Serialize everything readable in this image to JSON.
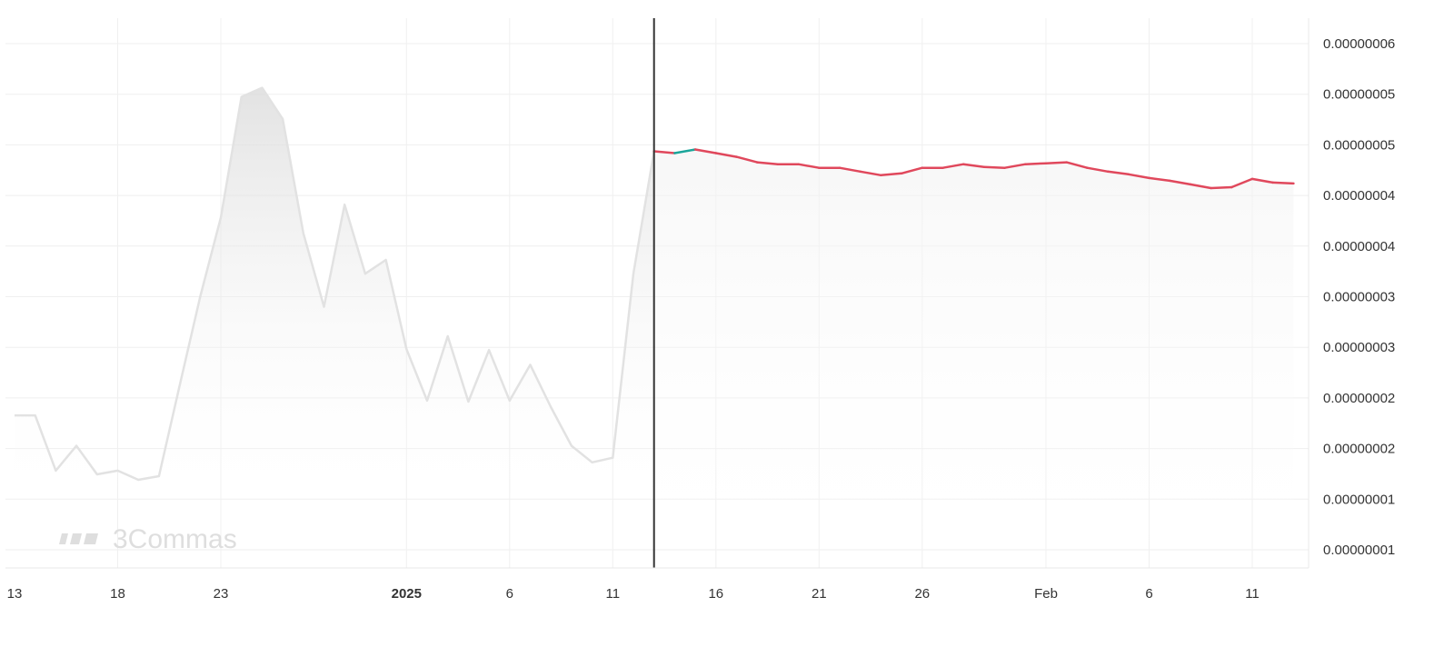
{
  "chart_data": {
    "type": "line",
    "y_tick_labels": [
      "0.00000006",
      "0.00000005",
      "0.00000005",
      "0.00000004",
      "0.00000004",
      "0.00000003",
      "0.00000003",
      "0.00000002",
      "0.00000002",
      "0.00000001",
      "0.00000001"
    ],
    "x_tick_labels": [
      {
        "label": "13",
        "day": 0,
        "bold": false
      },
      {
        "label": "18",
        "day": 5,
        "bold": false
      },
      {
        "label": "23",
        "day": 10,
        "bold": false
      },
      {
        "label": "2025",
        "day": 19,
        "bold": true
      },
      {
        "label": "6",
        "day": 24,
        "bold": false
      },
      {
        "label": "11",
        "day": 29,
        "bold": false
      },
      {
        "label": "16",
        "day": 34,
        "bold": false
      },
      {
        "label": "21",
        "day": 39,
        "bold": false
      },
      {
        "label": "26",
        "day": 44,
        "bold": false
      },
      {
        "label": "Feb",
        "day": 50,
        "bold": false
      },
      {
        "label": "6",
        "day": 55,
        "bold": false
      },
      {
        "label": "11",
        "day": 60,
        "bold": false
      }
    ],
    "x_unit": "days from Dec 13, 2024",
    "ylim": [
      5e-09,
      6e-08
    ],
    "xlim": [
      0,
      62.7
    ],
    "divider_day": 31,
    "series": [
      {
        "name": "",
        "role": "history",
        "color": "#e2e2e2",
        "x": [
          0,
          1,
          2,
          3,
          4,
          5,
          6,
          7,
          8,
          9,
          10,
          11,
          12,
          13,
          14,
          15,
          16,
          17,
          18,
          19,
          20,
          21,
          22,
          23,
          24,
          25,
          26,
          27,
          28,
          29,
          30,
          31
        ],
        "values": [
          1.96e-08,
          1.96e-08,
          1.36e-08,
          1.63e-08,
          1.32e-08,
          1.36e-08,
          1.26e-08,
          1.3e-08,
          2.28e-08,
          3.25e-08,
          4.11e-08,
          5.42e-08,
          5.52e-08,
          5.18e-08,
          3.94e-08,
          3.14e-08,
          4.25e-08,
          3.5e-08,
          3.65e-08,
          2.68e-08,
          2.12e-08,
          2.82e-08,
          2.11e-08,
          2.67e-08,
          2.12e-08,
          2.51e-08,
          2.05e-08,
          1.63e-08,
          1.45e-08,
          1.5e-08,
          3.5e-08,
          4.83e-08
        ]
      },
      {
        "name": "",
        "role": "forecast",
        "color": "#e0485c",
        "up_color": "#1aa59a",
        "x": [
          31,
          32,
          33,
          34,
          35,
          36,
          37,
          38,
          39,
          40,
          41,
          42,
          43,
          44,
          45,
          46,
          47,
          48,
          49,
          50,
          51,
          52,
          53,
          54,
          55,
          56,
          57,
          58,
          59,
          60,
          61,
          62
        ],
        "values": [
          4.83e-08,
          4.81e-08,
          4.85e-08,
          4.81e-08,
          4.77e-08,
          4.71e-08,
          4.69e-08,
          4.69e-08,
          4.65e-08,
          4.65e-08,
          4.61e-08,
          4.57e-08,
          4.59e-08,
          4.65e-08,
          4.65e-08,
          4.69e-08,
          4.66e-08,
          4.65e-08,
          4.69e-08,
          4.7e-08,
          4.71e-08,
          4.65e-08,
          4.61e-08,
          4.58e-08,
          4.54e-08,
          4.51e-08,
          4.47e-08,
          4.43e-08,
          4.44e-08,
          4.53e-08,
          4.49e-08,
          4.48e-08
        ]
      }
    ],
    "grid": true,
    "watermark": "3Commas"
  }
}
